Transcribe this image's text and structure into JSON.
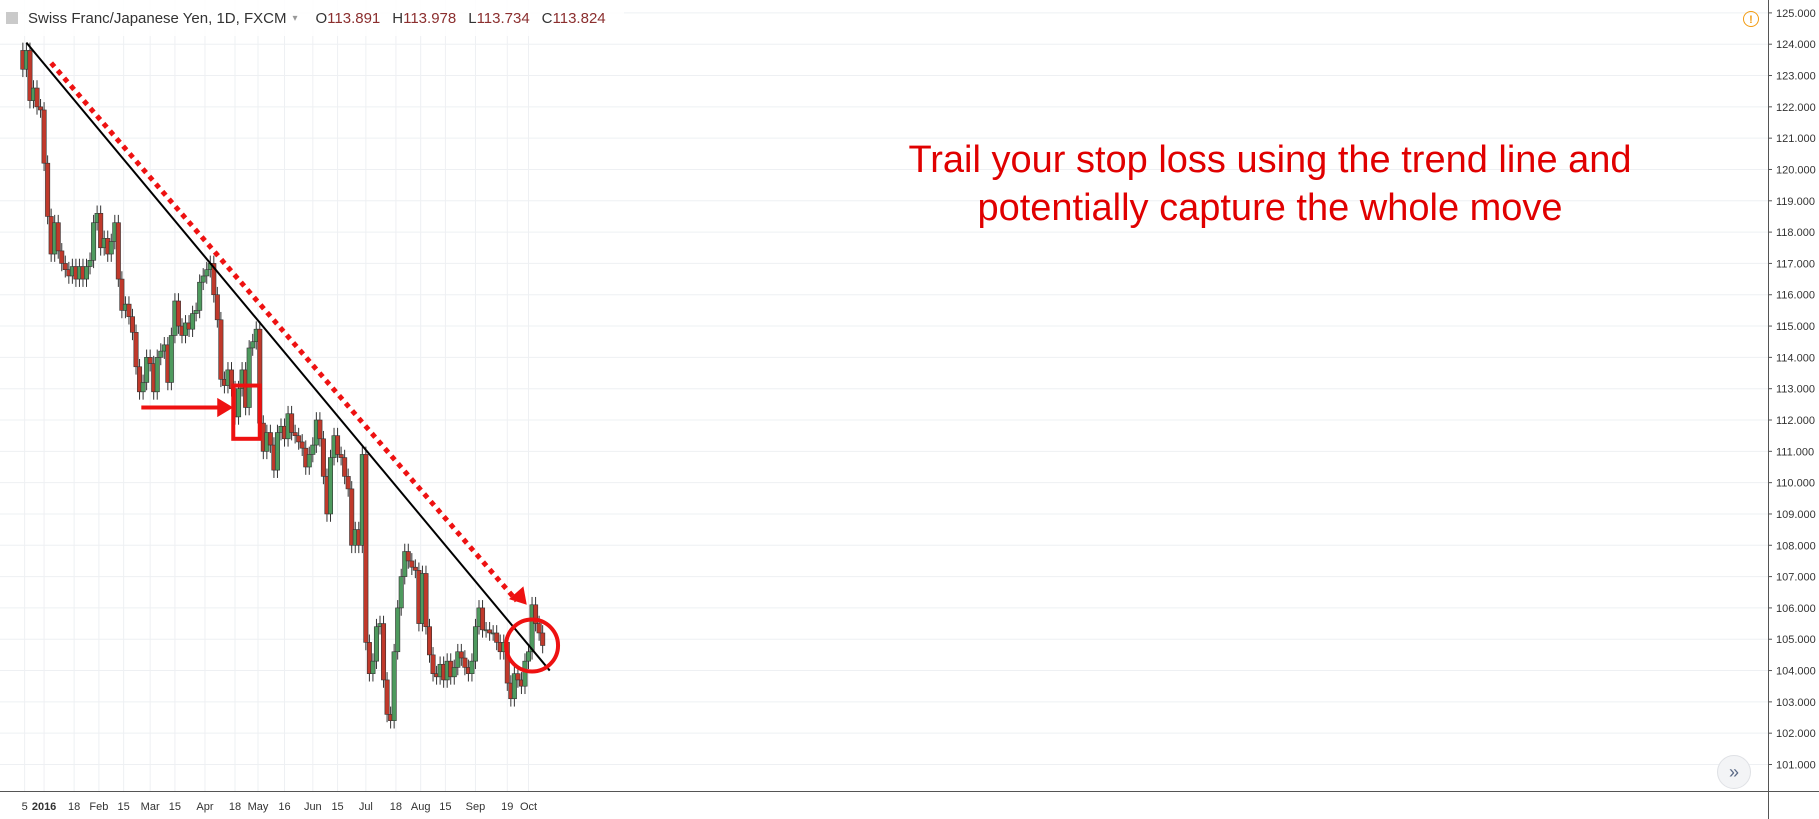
{
  "legend": {
    "symbol": "Swiss Franc/Japanese Yen, 1D, FXCM",
    "open_label": "O",
    "open": "113.891",
    "high_label": "H",
    "high": "113.978",
    "low_label": "L",
    "low": "113.734",
    "close_label": "C",
    "close": "113.824"
  },
  "annotation": {
    "line1": "Trail your stop loss using the trend line and",
    "line2": "potentially capture the whole move"
  },
  "colors": {
    "up": "#4e9a5e",
    "down": "#c0392b",
    "annotation": "#ee1111",
    "trendline": "#000000",
    "grid": "#eef0f3"
  },
  "icons": {
    "warning": "warning-icon",
    "scroll": "chevron-double-right-icon"
  },
  "scroll_button_glyph": "»",
  "warning_glyph": "!",
  "chart_data": {
    "type": "candlestick",
    "title": "Swiss Franc/Japanese Yen, 1D, FXCM",
    "y_axis_side": "right",
    "ylim": [
      100.5,
      125.3
    ],
    "y_ticks": [
      "125.000",
      "124.000",
      "123.000",
      "122.000",
      "121.000",
      "120.000",
      "119.000",
      "118.000",
      "117.000",
      "116.000",
      "115.000",
      "114.000",
      "113.000",
      "112.000",
      "111.000",
      "110.000",
      "109.000",
      "108.000",
      "107.000",
      "106.000",
      "105.000",
      "104.000",
      "103.000",
      "102.000",
      "101.000"
    ],
    "x_ticks": [
      {
        "label": "5",
        "day": -1
      },
      {
        "label": "2016",
        "day": 10,
        "bold": true
      },
      {
        "label": "18",
        "day": 27
      },
      {
        "label": "Feb",
        "day": 41
      },
      {
        "label": "15",
        "day": 55
      },
      {
        "label": "Mar",
        "day": 70
      },
      {
        "label": "15",
        "day": 84
      },
      {
        "label": "Apr",
        "day": 101
      },
      {
        "label": "18",
        "day": 118
      },
      {
        "label": "May",
        "day": 131
      },
      {
        "label": "16",
        "day": 146
      },
      {
        "label": "Jun",
        "day": 162
      },
      {
        "label": "15",
        "day": 176
      },
      {
        "label": "Jul",
        "day": 192
      },
      {
        "label": "18",
        "day": 209
      },
      {
        "label": "Aug",
        "day": 223
      },
      {
        "label": "15",
        "day": 237
      },
      {
        "label": "Sep",
        "day": 254
      },
      {
        "label": "19",
        "day": 272
      },
      {
        "label": "Oct",
        "day": 284
      }
    ],
    "close_points": [
      {
        "day": -2,
        "close": 123.2
      },
      {
        "day": 0,
        "close": 123.8
      },
      {
        "day": 2,
        "close": 122.2
      },
      {
        "day": 4,
        "close": 122.6
      },
      {
        "day": 6,
        "close": 122.0
      },
      {
        "day": 8,
        "close": 121.9
      },
      {
        "day": 10,
        "close": 120.2
      },
      {
        "day": 12,
        "close": 118.5
      },
      {
        "day": 14,
        "close": 117.3
      },
      {
        "day": 16,
        "close": 118.3
      },
      {
        "day": 18,
        "close": 117.4
      },
      {
        "day": 20,
        "close": 117.0
      },
      {
        "day": 22,
        "close": 116.8
      },
      {
        "day": 24,
        "close": 116.6
      },
      {
        "day": 26,
        "close": 116.9
      },
      {
        "day": 28,
        "close": 116.5
      },
      {
        "day": 30,
        "close": 116.9
      },
      {
        "day": 32,
        "close": 116.5
      },
      {
        "day": 34,
        "close": 116.9
      },
      {
        "day": 36,
        "close": 117.1
      },
      {
        "day": 38,
        "close": 118.3
      },
      {
        "day": 40,
        "close": 118.6
      },
      {
        "day": 42,
        "close": 117.5
      },
      {
        "day": 44,
        "close": 117.8
      },
      {
        "day": 46,
        "close": 117.3
      },
      {
        "day": 48,
        "close": 117.7
      },
      {
        "day": 50,
        "close": 118.3
      },
      {
        "day": 52,
        "close": 116.5
      },
      {
        "day": 54,
        "close": 115.5
      },
      {
        "day": 56,
        "close": 115.7
      },
      {
        "day": 58,
        "close": 115.3
      },
      {
        "day": 60,
        "close": 114.8
      },
      {
        "day": 62,
        "close": 113.7
      },
      {
        "day": 64,
        "close": 112.9
      },
      {
        "day": 66,
        "close": 113.2
      },
      {
        "day": 68,
        "close": 114.0
      },
      {
        "day": 70,
        "close": 113.8
      },
      {
        "day": 72,
        "close": 112.9
      },
      {
        "day": 74,
        "close": 114.0
      },
      {
        "day": 76,
        "close": 114.2
      },
      {
        "day": 78,
        "close": 114.4
      },
      {
        "day": 80,
        "close": 113.2
      },
      {
        "day": 82,
        "close": 114.7
      },
      {
        "day": 84,
        "close": 115.8
      },
      {
        "day": 86,
        "close": 115.0
      },
      {
        "day": 88,
        "close": 114.7
      },
      {
        "day": 90,
        "close": 115.1
      },
      {
        "day": 92,
        "close": 114.9
      },
      {
        "day": 94,
        "close": 115.4
      },
      {
        "day": 96,
        "close": 115.5
      },
      {
        "day": 98,
        "close": 116.4
      },
      {
        "day": 100,
        "close": 116.6
      },
      {
        "day": 102,
        "close": 116.8
      },
      {
        "day": 104,
        "close": 117.0
      },
      {
        "day": 106,
        "close": 116.0
      },
      {
        "day": 108,
        "close": 115.2
      },
      {
        "day": 110,
        "close": 113.3
      },
      {
        "day": 112,
        "close": 113.1
      },
      {
        "day": 114,
        "close": 113.6
      },
      {
        "day": 116,
        "close": 113.0
      },
      {
        "day": 118,
        "close": 112.1
      },
      {
        "day": 120,
        "close": 113.0
      },
      {
        "day": 122,
        "close": 113.6
      },
      {
        "day": 124,
        "close": 112.4
      },
      {
        "day": 126,
        "close": 114.3
      },
      {
        "day": 128,
        "close": 114.5
      },
      {
        "day": 130,
        "close": 114.9
      },
      {
        "day": 132,
        "close": 111.9
      },
      {
        "day": 134,
        "close": 111.0
      },
      {
        "day": 136,
        "close": 111.6
      },
      {
        "day": 138,
        "close": 111.2
      },
      {
        "day": 140,
        "close": 110.4
      },
      {
        "day": 142,
        "close": 111.6
      },
      {
        "day": 144,
        "close": 111.8
      },
      {
        "day": 146,
        "close": 111.4
      },
      {
        "day": 148,
        "close": 112.2
      },
      {
        "day": 150,
        "close": 111.6
      },
      {
        "day": 152,
        "close": 111.5
      },
      {
        "day": 154,
        "close": 111.3
      },
      {
        "day": 156,
        "close": 111.1
      },
      {
        "day": 158,
        "close": 110.5
      },
      {
        "day": 160,
        "close": 110.9
      },
      {
        "day": 162,
        "close": 111.2
      },
      {
        "day": 164,
        "close": 112.0
      },
      {
        "day": 166,
        "close": 111.4
      },
      {
        "day": 168,
        "close": 110.2
      },
      {
        "day": 170,
        "close": 109.0
      },
      {
        "day": 172,
        "close": 110.8
      },
      {
        "day": 174,
        "close": 111.5
      },
      {
        "day": 176,
        "close": 110.9
      },
      {
        "day": 178,
        "close": 110.8
      },
      {
        "day": 180,
        "close": 110.2
      },
      {
        "day": 182,
        "close": 109.8
      },
      {
        "day": 184,
        "close": 108.0
      },
      {
        "day": 186,
        "close": 108.5
      },
      {
        "day": 188,
        "close": 108.0
      },
      {
        "day": 190,
        "close": 110.9
      },
      {
        "day": 192,
        "close": 104.9
      },
      {
        "day": 194,
        "close": 103.9
      },
      {
        "day": 196,
        "close": 104.3
      },
      {
        "day": 198,
        "close": 105.4
      },
      {
        "day": 200,
        "close": 105.5
      },
      {
        "day": 202,
        "close": 103.7
      },
      {
        "day": 204,
        "close": 102.6
      },
      {
        "day": 206,
        "close": 102.4
      },
      {
        "day": 208,
        "close": 104.6
      },
      {
        "day": 210,
        "close": 106.0
      },
      {
        "day": 212,
        "close": 107.0
      },
      {
        "day": 214,
        "close": 107.8
      },
      {
        "day": 216,
        "close": 107.5
      },
      {
        "day": 218,
        "close": 107.3
      },
      {
        "day": 220,
        "close": 107.2
      },
      {
        "day": 222,
        "close": 105.5
      },
      {
        "day": 224,
        "close": 107.1
      },
      {
        "day": 226,
        "close": 105.4
      },
      {
        "day": 228,
        "close": 104.5
      },
      {
        "day": 230,
        "close": 103.9
      },
      {
        "day": 232,
        "close": 103.8
      },
      {
        "day": 234,
        "close": 104.2
      },
      {
        "day": 236,
        "close": 103.7
      },
      {
        "day": 238,
        "close": 104.3
      },
      {
        "day": 240,
        "close": 103.8
      },
      {
        "day": 242,
        "close": 104.1
      },
      {
        "day": 244,
        "close": 104.6
      },
      {
        "day": 246,
        "close": 104.4
      },
      {
        "day": 248,
        "close": 104.1
      },
      {
        "day": 250,
        "close": 103.9
      },
      {
        "day": 252,
        "close": 104.3
      },
      {
        "day": 254,
        "close": 105.4
      },
      {
        "day": 256,
        "close": 106.0
      },
      {
        "day": 258,
        "close": 105.3
      },
      {
        "day": 260,
        "close": 105.3
      },
      {
        "day": 262,
        "close": 105.2
      },
      {
        "day": 264,
        "close": 105.2
      },
      {
        "day": 266,
        "close": 104.9
      },
      {
        "day": 268,
        "close": 104.6
      },
      {
        "day": 270,
        "close": 104.9
      },
      {
        "day": 272,
        "close": 103.6
      },
      {
        "day": 274,
        "close": 103.1
      },
      {
        "day": 276,
        "close": 103.9
      },
      {
        "day": 278,
        "close": 103.7
      },
      {
        "day": 280,
        "close": 103.5
      },
      {
        "day": 282,
        "close": 104.3
      },
      {
        "day": 284,
        "close": 104.6
      },
      {
        "day": 286,
        "close": 106.1
      },
      {
        "day": 288,
        "close": 105.5
      },
      {
        "day": 290,
        "close": 105.2
      },
      {
        "day": 292,
        "close": 104.8
      }
    ],
    "trendline": {
      "from": {
        "day": 0,
        "price": 124.05
      },
      "to": {
        "day": 296,
        "price": 104.0
      }
    },
    "dotted_arrow": {
      "from": {
        "day": 14,
        "price": 123.4
      },
      "to": {
        "day": 283,
        "price": 106.1
      }
    },
    "arrow": {
      "from": {
        "day": 65,
        "price": 112.4
      },
      "to": {
        "day": 117,
        "price": 112.4
      }
    },
    "box": {
      "from": {
        "day": 117,
        "price": 113.1
      },
      "to": {
        "day": 132,
        "price": 111.4
      }
    },
    "circle": {
      "center": {
        "day": 286,
        "price": 104.8
      }
    }
  }
}
